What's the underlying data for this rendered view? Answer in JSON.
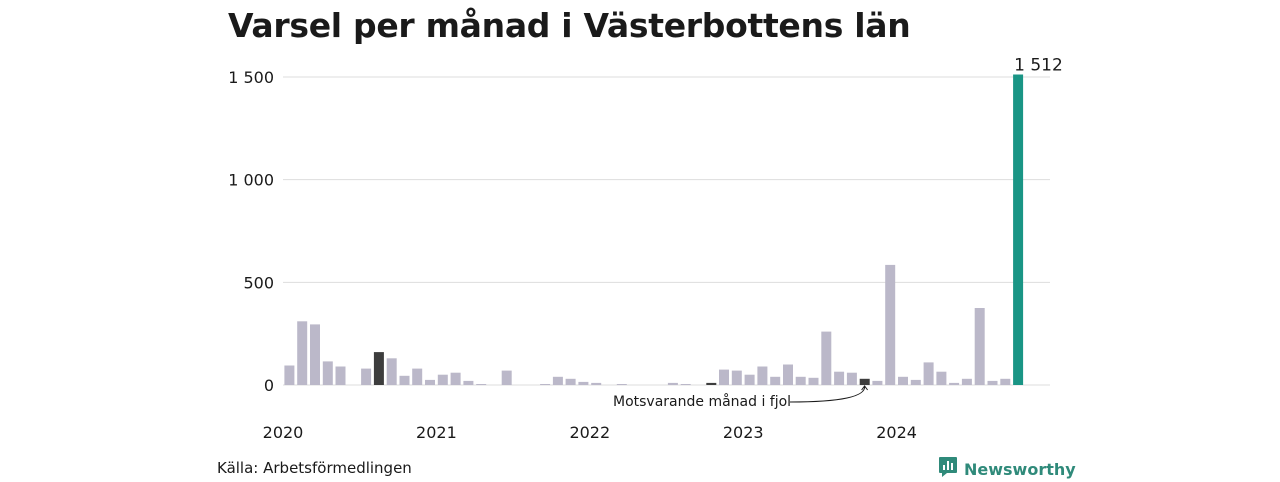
{
  "header": {
    "title": "Varsel per månad i Västerbottens län"
  },
  "footer": {
    "source": "Källa: Arbetsförmedlingen",
    "brand": "Newsworthy",
    "brand_icon": "bar-chart-icon",
    "brand_color": "#2f8a7a"
  },
  "chart_data": {
    "type": "bar",
    "title": "Varsel per månad i Västerbottens län",
    "xlabel": "",
    "ylabel": "",
    "ylim": [
      0,
      1500
    ],
    "yticks": [
      0,
      500,
      1000,
      1500
    ],
    "ytick_labels": [
      "0",
      "500",
      "1 000",
      "1 500"
    ],
    "xtick_labels": [
      "2020",
      "2021",
      "2022",
      "2023",
      "2024"
    ],
    "grid": true,
    "colors": {
      "default": "#bbb8c9",
      "comparison": "#3d3d3d",
      "highlight": "#1a9585"
    },
    "months": [
      "2020-01",
      "2020-02",
      "2020-03",
      "2020-04",
      "2020-05",
      "2020-06",
      "2020-07",
      "2020-08",
      "2020-09",
      "2020-10",
      "2020-11",
      "2020-12",
      "2021-01",
      "2021-02",
      "2021-03",
      "2021-04",
      "2021-05",
      "2021-06",
      "2021-07",
      "2021-08",
      "2021-09",
      "2021-10",
      "2021-11",
      "2021-12",
      "2022-01",
      "2022-02",
      "2022-03",
      "2022-04",
      "2022-05",
      "2022-06",
      "2022-07",
      "2022-08",
      "2022-09",
      "2022-10",
      "2022-11",
      "2022-12",
      "2023-01",
      "2023-02",
      "2023-03",
      "2023-04",
      "2023-05",
      "2023-06",
      "2023-07",
      "2023-08",
      "2023-09",
      "2023-10",
      "2023-11",
      "2023-12",
      "2024-01",
      "2024-02",
      "2024-03",
      "2024-04",
      "2024-05",
      "2024-06",
      "2024-07",
      "2024-08",
      "2024-09",
      "2024-10",
      "2024-11",
      "2024-12"
    ],
    "values": [
      95,
      310,
      295,
      115,
      90,
      0,
      80,
      160,
      130,
      45,
      80,
      25,
      50,
      60,
      20,
      5,
      0,
      70,
      0,
      0,
      5,
      40,
      30,
      15,
      10,
      0,
      5,
      0,
      0,
      0,
      10,
      5,
      0,
      10,
      75,
      70,
      50,
      90,
      40,
      100,
      40,
      35,
      260,
      65,
      60,
      30,
      20,
      585,
      40,
      25,
      110,
      65,
      10,
      30,
      375,
      20,
      30,
      1512,
      0,
      0
    ],
    "comparison_months": [
      "2020-08",
      "2021-08",
      "2022-10",
      "2023-10"
    ],
    "highlight_month": "2024-10",
    "highlight_value_label": "1 512",
    "annotation": "Motsvarande månad i fjol",
    "annotation_target": "2023-10"
  }
}
